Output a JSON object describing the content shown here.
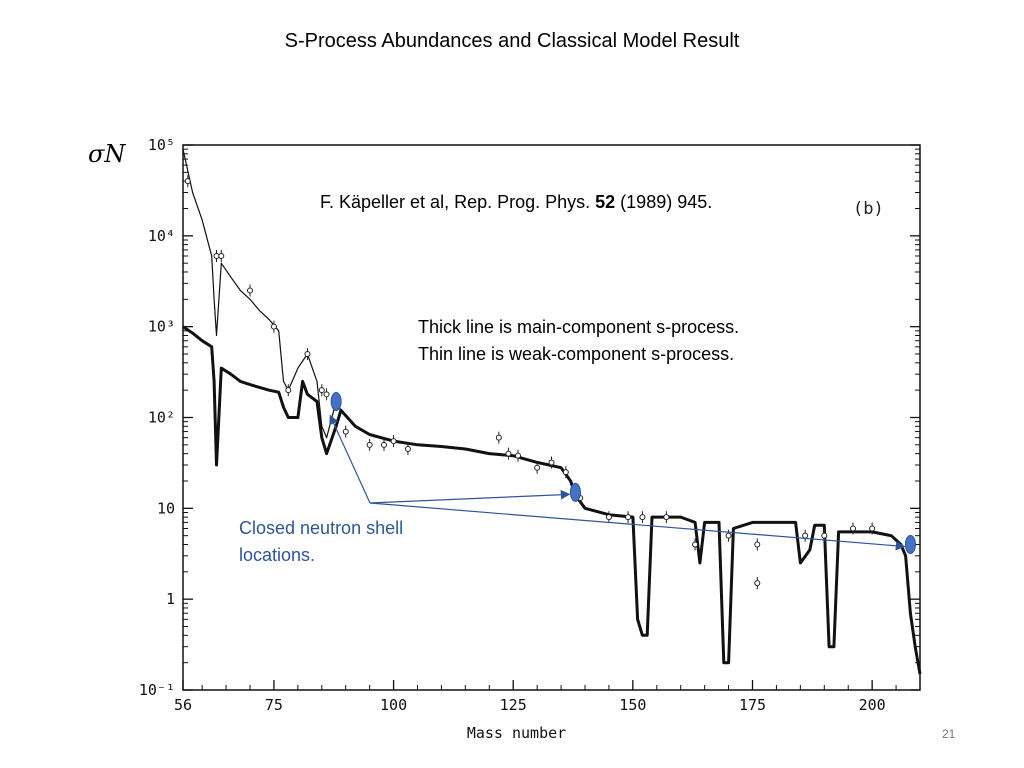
{
  "slide": {
    "title": "S-Process Abundances and Classical Model Result",
    "citation_prefix": "F. Käpeller et al, Rep. Prog. Phys. ",
    "citation_volume": "52",
    "citation_suffix": " (1989) 945.",
    "note_line1": "Thick line is main-component s-process.",
    "note_line2": "Thin line is weak-component s-process.",
    "shell_label_line1": "Closed neutron shell",
    "shell_label_line2": "locations.",
    "page_number": "21",
    "accent_color": "#2f5597",
    "marker_color": "#4472c4"
  },
  "chart_data": {
    "type": "line",
    "ylabel": "σN",
    "xlabel": "Mass number",
    "panel_label": "(b)",
    "xlim": [
      56,
      210
    ],
    "ylim": [
      0.1,
      100000
    ],
    "yscale": "log",
    "x_ticks": [
      56,
      75,
      100,
      125,
      150,
      175,
      200
    ],
    "x_tick_labels": [
      "56",
      "75",
      "100",
      "125",
      "150",
      "175",
      "200"
    ],
    "y_ticks": [
      0.1,
      1,
      10,
      100,
      1000,
      10000,
      100000
    ],
    "y_tick_labels": [
      "10⁻¹",
      "1",
      "10",
      "10²",
      "10³",
      "10⁴",
      "10⁵"
    ],
    "series": [
      {
        "name": "Thick line is main-component s-process.",
        "points": [
          [
            56,
            1000
          ],
          [
            58,
            850
          ],
          [
            60,
            700
          ],
          [
            62,
            600
          ],
          [
            62.5,
            250
          ],
          [
            63,
            30
          ],
          [
            64,
            350
          ],
          [
            66,
            300
          ],
          [
            68,
            250
          ],
          [
            70,
            230
          ],
          [
            74,
            200
          ],
          [
            76,
            190
          ],
          [
            77,
            130
          ],
          [
            78,
            100
          ],
          [
            80,
            100
          ],
          [
            81,
            250
          ],
          [
            82,
            180
          ],
          [
            84,
            150
          ],
          [
            85,
            60
          ],
          [
            86,
            40
          ],
          [
            88,
            80
          ],
          [
            89,
            120
          ],
          [
            92,
            80
          ],
          [
            95,
            65
          ],
          [
            100,
            55
          ],
          [
            105,
            50
          ],
          [
            110,
            48
          ],
          [
            115,
            45
          ],
          [
            120,
            40
          ],
          [
            125,
            38
          ],
          [
            130,
            32
          ],
          [
            135,
            28
          ],
          [
            137,
            20
          ],
          [
            138,
            14
          ],
          [
            140,
            10
          ],
          [
            145,
            8.5
          ],
          [
            150,
            8
          ],
          [
            151,
            0.6
          ],
          [
            152,
            0.4
          ],
          [
            153,
            0.4
          ],
          [
            154,
            8
          ],
          [
            160,
            8
          ],
          [
            163,
            7
          ],
          [
            164,
            2.5
          ],
          [
            165,
            7
          ],
          [
            168,
            7
          ],
          [
            169,
            0.2
          ],
          [
            170,
            0.2
          ],
          [
            171,
            6
          ],
          [
            175,
            7
          ],
          [
            180,
            7
          ],
          [
            184,
            7
          ],
          [
            185,
            2.5
          ],
          [
            187,
            3.5
          ],
          [
            188,
            6.5
          ],
          [
            190,
            6.5
          ],
          [
            191,
            0.3
          ],
          [
            192,
            0.3
          ],
          [
            193,
            5.5
          ],
          [
            196,
            5.5
          ],
          [
            200,
            5.5
          ],
          [
            204,
            5
          ],
          [
            206,
            4
          ],
          [
            207,
            3
          ],
          [
            208,
            0.7
          ],
          [
            209,
            0.3
          ],
          [
            210,
            0.15
          ]
        ]
      },
      {
        "name": "Thin line is weak-component s-process.",
        "points": [
          [
            56,
            90000
          ],
          [
            58,
            30000
          ],
          [
            60,
            15000
          ],
          [
            62,
            6000
          ],
          [
            62.5,
            2000
          ],
          [
            63,
            800
          ],
          [
            64,
            5000
          ],
          [
            66,
            3500
          ],
          [
            68,
            2500
          ],
          [
            70,
            2000
          ],
          [
            72,
            1500
          ],
          [
            74,
            1200
          ],
          [
            76,
            900
          ],
          [
            77,
            250
          ],
          [
            78,
            200
          ],
          [
            80,
            350
          ],
          [
            82,
            500
          ],
          [
            84,
            250
          ],
          [
            85,
            80
          ],
          [
            86,
            60
          ],
          [
            88,
            150
          ],
          [
            89,
            120
          ],
          [
            92,
            80
          ],
          [
            95,
            65
          ],
          [
            100,
            55
          ]
        ]
      }
    ],
    "measured_points": [
      [
        57,
        40000
      ],
      [
        63,
        6000
      ],
      [
        64,
        6000
      ],
      [
        70,
        2500
      ],
      [
        75,
        1000
      ],
      [
        78,
        200
      ],
      [
        82,
        500
      ],
      [
        85,
        200
      ],
      [
        86,
        180
      ],
      [
        90,
        70
      ],
      [
        95,
        50
      ],
      [
        98,
        50
      ],
      [
        100,
        55
      ],
      [
        103,
        45
      ],
      [
        122,
        60
      ],
      [
        124,
        40
      ],
      [
        126,
        38
      ],
      [
        130,
        28
      ],
      [
        133,
        32
      ],
      [
        136,
        25
      ],
      [
        139,
        13
      ],
      [
        145,
        8
      ],
      [
        149,
        8
      ],
      [
        152,
        8
      ],
      [
        157,
        8
      ],
      [
        163,
        4
      ],
      [
        170,
        5
      ],
      [
        176,
        4
      ],
      [
        176,
        1.5
      ],
      [
        186,
        5
      ],
      [
        190,
        5
      ],
      [
        196,
        6
      ],
      [
        200,
        6
      ]
    ],
    "closed_shell_markers": [
      [
        88,
        150
      ],
      [
        138,
        15
      ],
      [
        208,
        4
      ]
    ]
  }
}
